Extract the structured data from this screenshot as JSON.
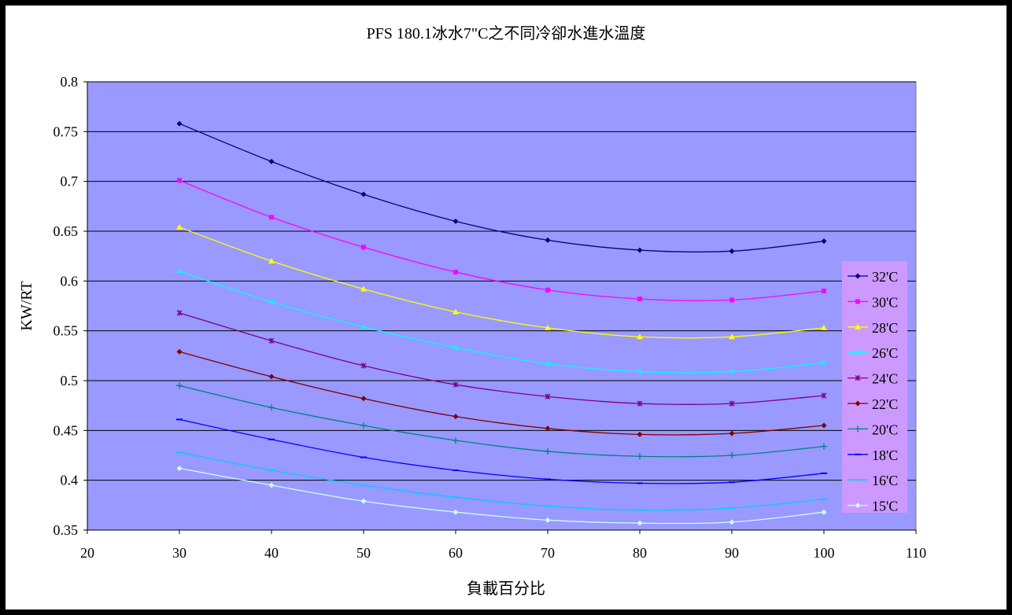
{
  "chart_data": {
    "type": "line",
    "title": "PFS 180.1冰水7\"C之不同冷卻水進水溫度",
    "xlabel": "負載百分比",
    "ylabel": "KW/RT",
    "xlim": [
      20,
      110
    ],
    "ylim": [
      0.35,
      0.8
    ],
    "xticks": [
      20,
      30,
      40,
      50,
      60,
      70,
      80,
      90,
      100,
      110
    ],
    "xtick_labels": [
      "20",
      "30",
      "40",
      "50",
      "60",
      "70",
      "80",
      "90",
      "100",
      "110"
    ],
    "yticks": [
      0.35,
      0.4,
      0.45,
      0.5,
      0.55,
      0.6,
      0.65,
      0.7,
      0.75,
      0.8
    ],
    "ytick_labels": [
      "0.35",
      "0.4",
      "0.45",
      "0.5",
      "0.55",
      "0.6",
      "0.65",
      "0.7",
      "0.75",
      "0.8"
    ],
    "grid": "horizontal",
    "legend_position": "right",
    "plot_background": "#9999ff",
    "legend_background": "#cc99ff",
    "x": [
      30,
      40,
      50,
      60,
      70,
      80,
      90,
      100
    ],
    "series": [
      {
        "name": "32'C",
        "color": "#000080",
        "marker": "diamond",
        "values": [
          0.758,
          0.72,
          0.687,
          0.66,
          0.641,
          0.631,
          0.63,
          0.64
        ]
      },
      {
        "name": "30'C",
        "color": "#ff00ff",
        "marker": "square",
        "values": [
          0.701,
          0.664,
          0.634,
          0.609,
          0.591,
          0.582,
          0.581,
          0.59
        ]
      },
      {
        "name": "28'C",
        "color": "#ffff00",
        "marker": "triangle",
        "values": [
          0.654,
          0.62,
          0.592,
          0.569,
          0.553,
          0.544,
          0.544,
          0.553
        ]
      },
      {
        "name": "26'C",
        "color": "#00ffff",
        "marker": "x",
        "values": [
          0.61,
          0.579,
          0.554,
          0.533,
          0.517,
          0.509,
          0.509,
          0.518
        ]
      },
      {
        "name": "24'C",
        "color": "#800080",
        "marker": "star",
        "values": [
          0.568,
          0.54,
          0.515,
          0.496,
          0.484,
          0.477,
          0.477,
          0.485
        ]
      },
      {
        "name": "22'C",
        "color": "#800000",
        "marker": "circle",
        "values": [
          0.529,
          0.504,
          0.482,
          0.464,
          0.452,
          0.446,
          0.447,
          0.455
        ]
      },
      {
        "name": "20'C",
        "color": "#008080",
        "marker": "plus",
        "values": [
          0.495,
          0.473,
          0.455,
          0.44,
          0.429,
          0.424,
          0.425,
          0.434
        ]
      },
      {
        "name": "18'C",
        "color": "#0000ff",
        "marker": "dash",
        "values": [
          0.461,
          0.441,
          0.423,
          0.41,
          0.401,
          0.397,
          0.398,
          0.407
        ]
      },
      {
        "name": "16'C",
        "color": "#00ccff",
        "marker": "dash",
        "values": [
          0.428,
          0.41,
          0.395,
          0.383,
          0.374,
          0.37,
          0.372,
          0.381
        ]
      },
      {
        "name": "15'C",
        "color": "#ccffff",
        "marker": "diamond",
        "values": [
          0.412,
          0.395,
          0.379,
          0.368,
          0.36,
          0.357,
          0.358,
          0.368
        ]
      }
    ]
  }
}
